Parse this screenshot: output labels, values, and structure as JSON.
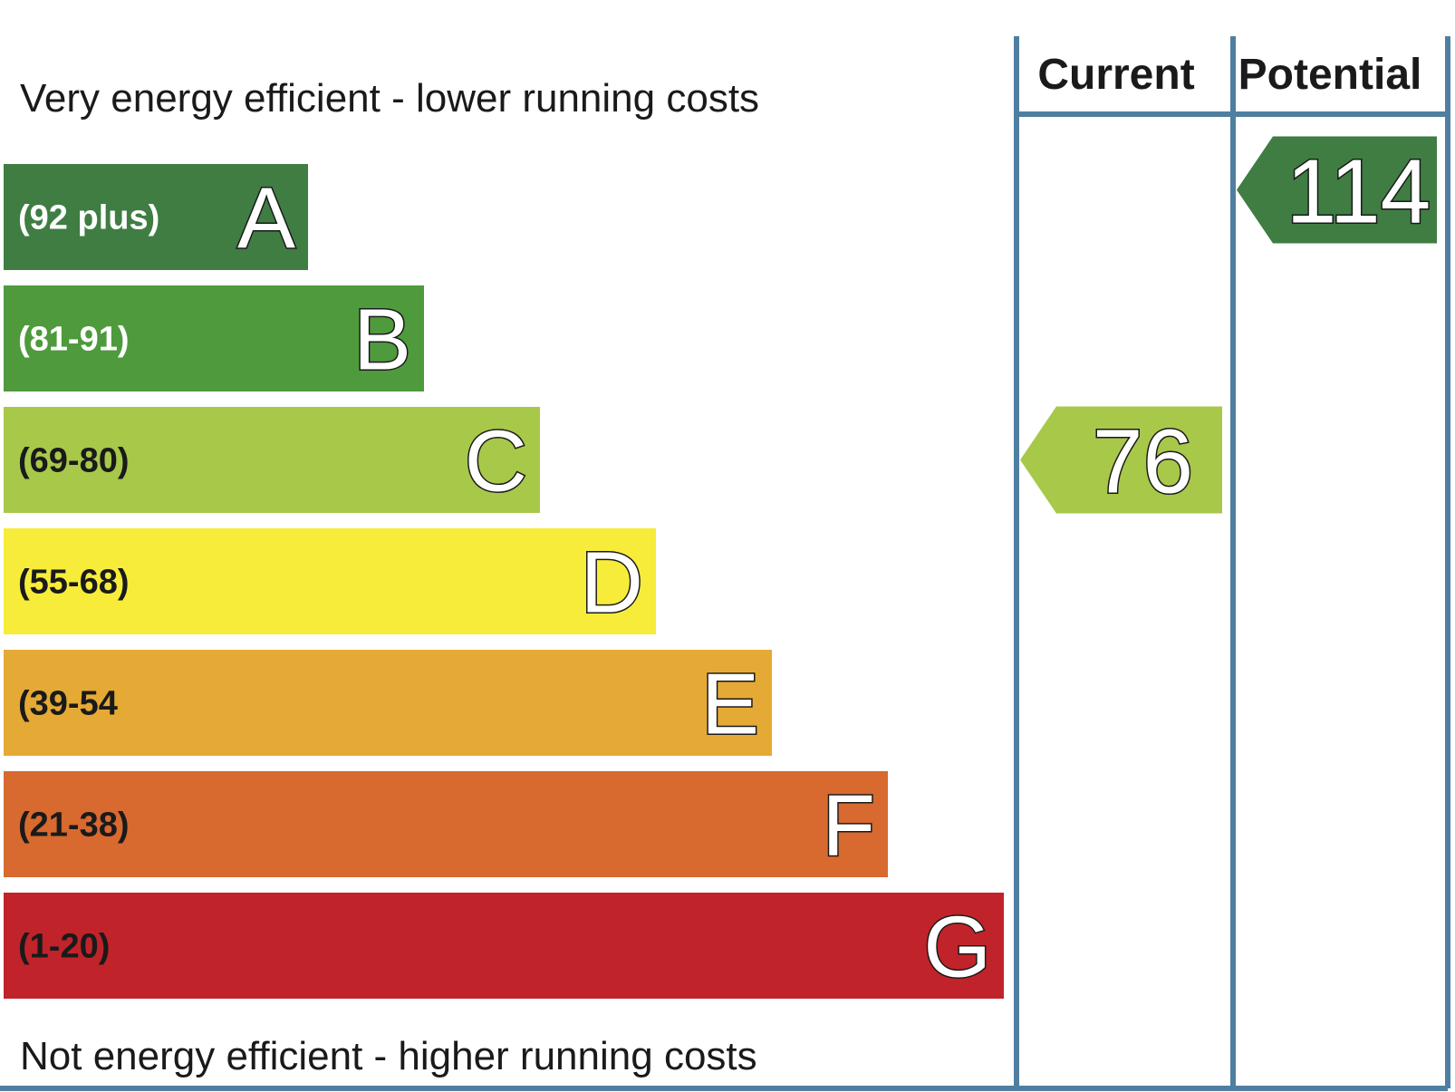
{
  "chart_data": {
    "type": "bar",
    "top_caption": "Very energy efficient - lower running costs",
    "bottom_caption": "Not energy efficient - higher running costs",
    "bands": [
      {
        "letter": "A",
        "range": "(92 plus)",
        "color": "#3f7d43",
        "range_color": "#ffffff"
      },
      {
        "letter": "B",
        "range": "(81-91)",
        "color": "#4e9a3c",
        "range_color": "#ffffff"
      },
      {
        "letter": "C",
        "range": "(69-80)",
        "color": "#a8c84a",
        "range_color": "#1a1a1a"
      },
      {
        "letter": "D",
        "range": "(55-68)",
        "color": "#f7ec3a",
        "range_color": "#1a1a1a"
      },
      {
        "letter": "E",
        "range": "(39-54",
        "color": "#e5aa35",
        "range_color": "#1a1a1a"
      },
      {
        "letter": "F",
        "range": "(21-38)",
        "color": "#d8692f",
        "range_color": "#1a1a1a"
      },
      {
        "letter": "G",
        "range": "(1-20)",
        "color": "#c1232a",
        "range_color": "#1a1a1a"
      }
    ],
    "columns": [
      {
        "key": "current",
        "label": "Current",
        "value": 76,
        "band": "C",
        "color": "#a8c84a"
      },
      {
        "key": "potential",
        "label": "Potential",
        "value": 114,
        "band": "A",
        "color": "#3f7d43"
      }
    ],
    "frame_color": "#4f7fa0"
  }
}
